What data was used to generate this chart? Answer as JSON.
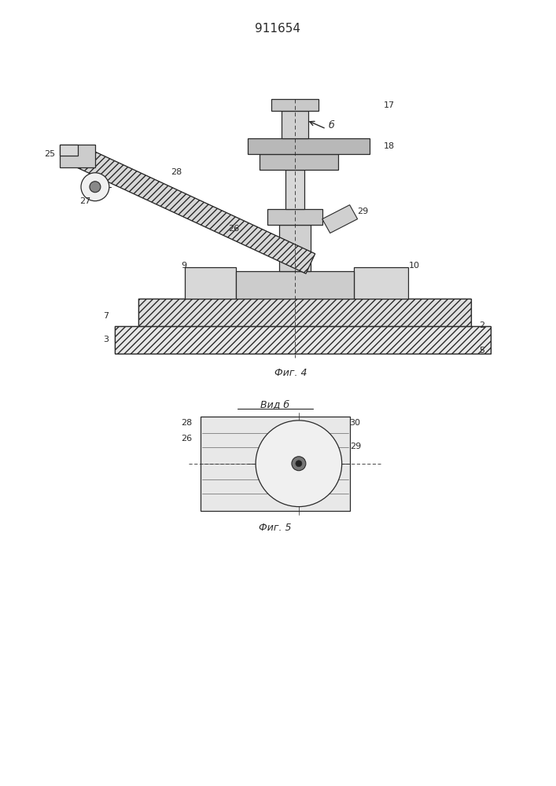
{
  "title": "911654",
  "bg_color": "#ffffff",
  "line_color": "#2a2a2a",
  "fig4_caption": "Фиг. 4",
  "fig5_caption": "Фиг. 5",
  "vid_b": "Вид б"
}
